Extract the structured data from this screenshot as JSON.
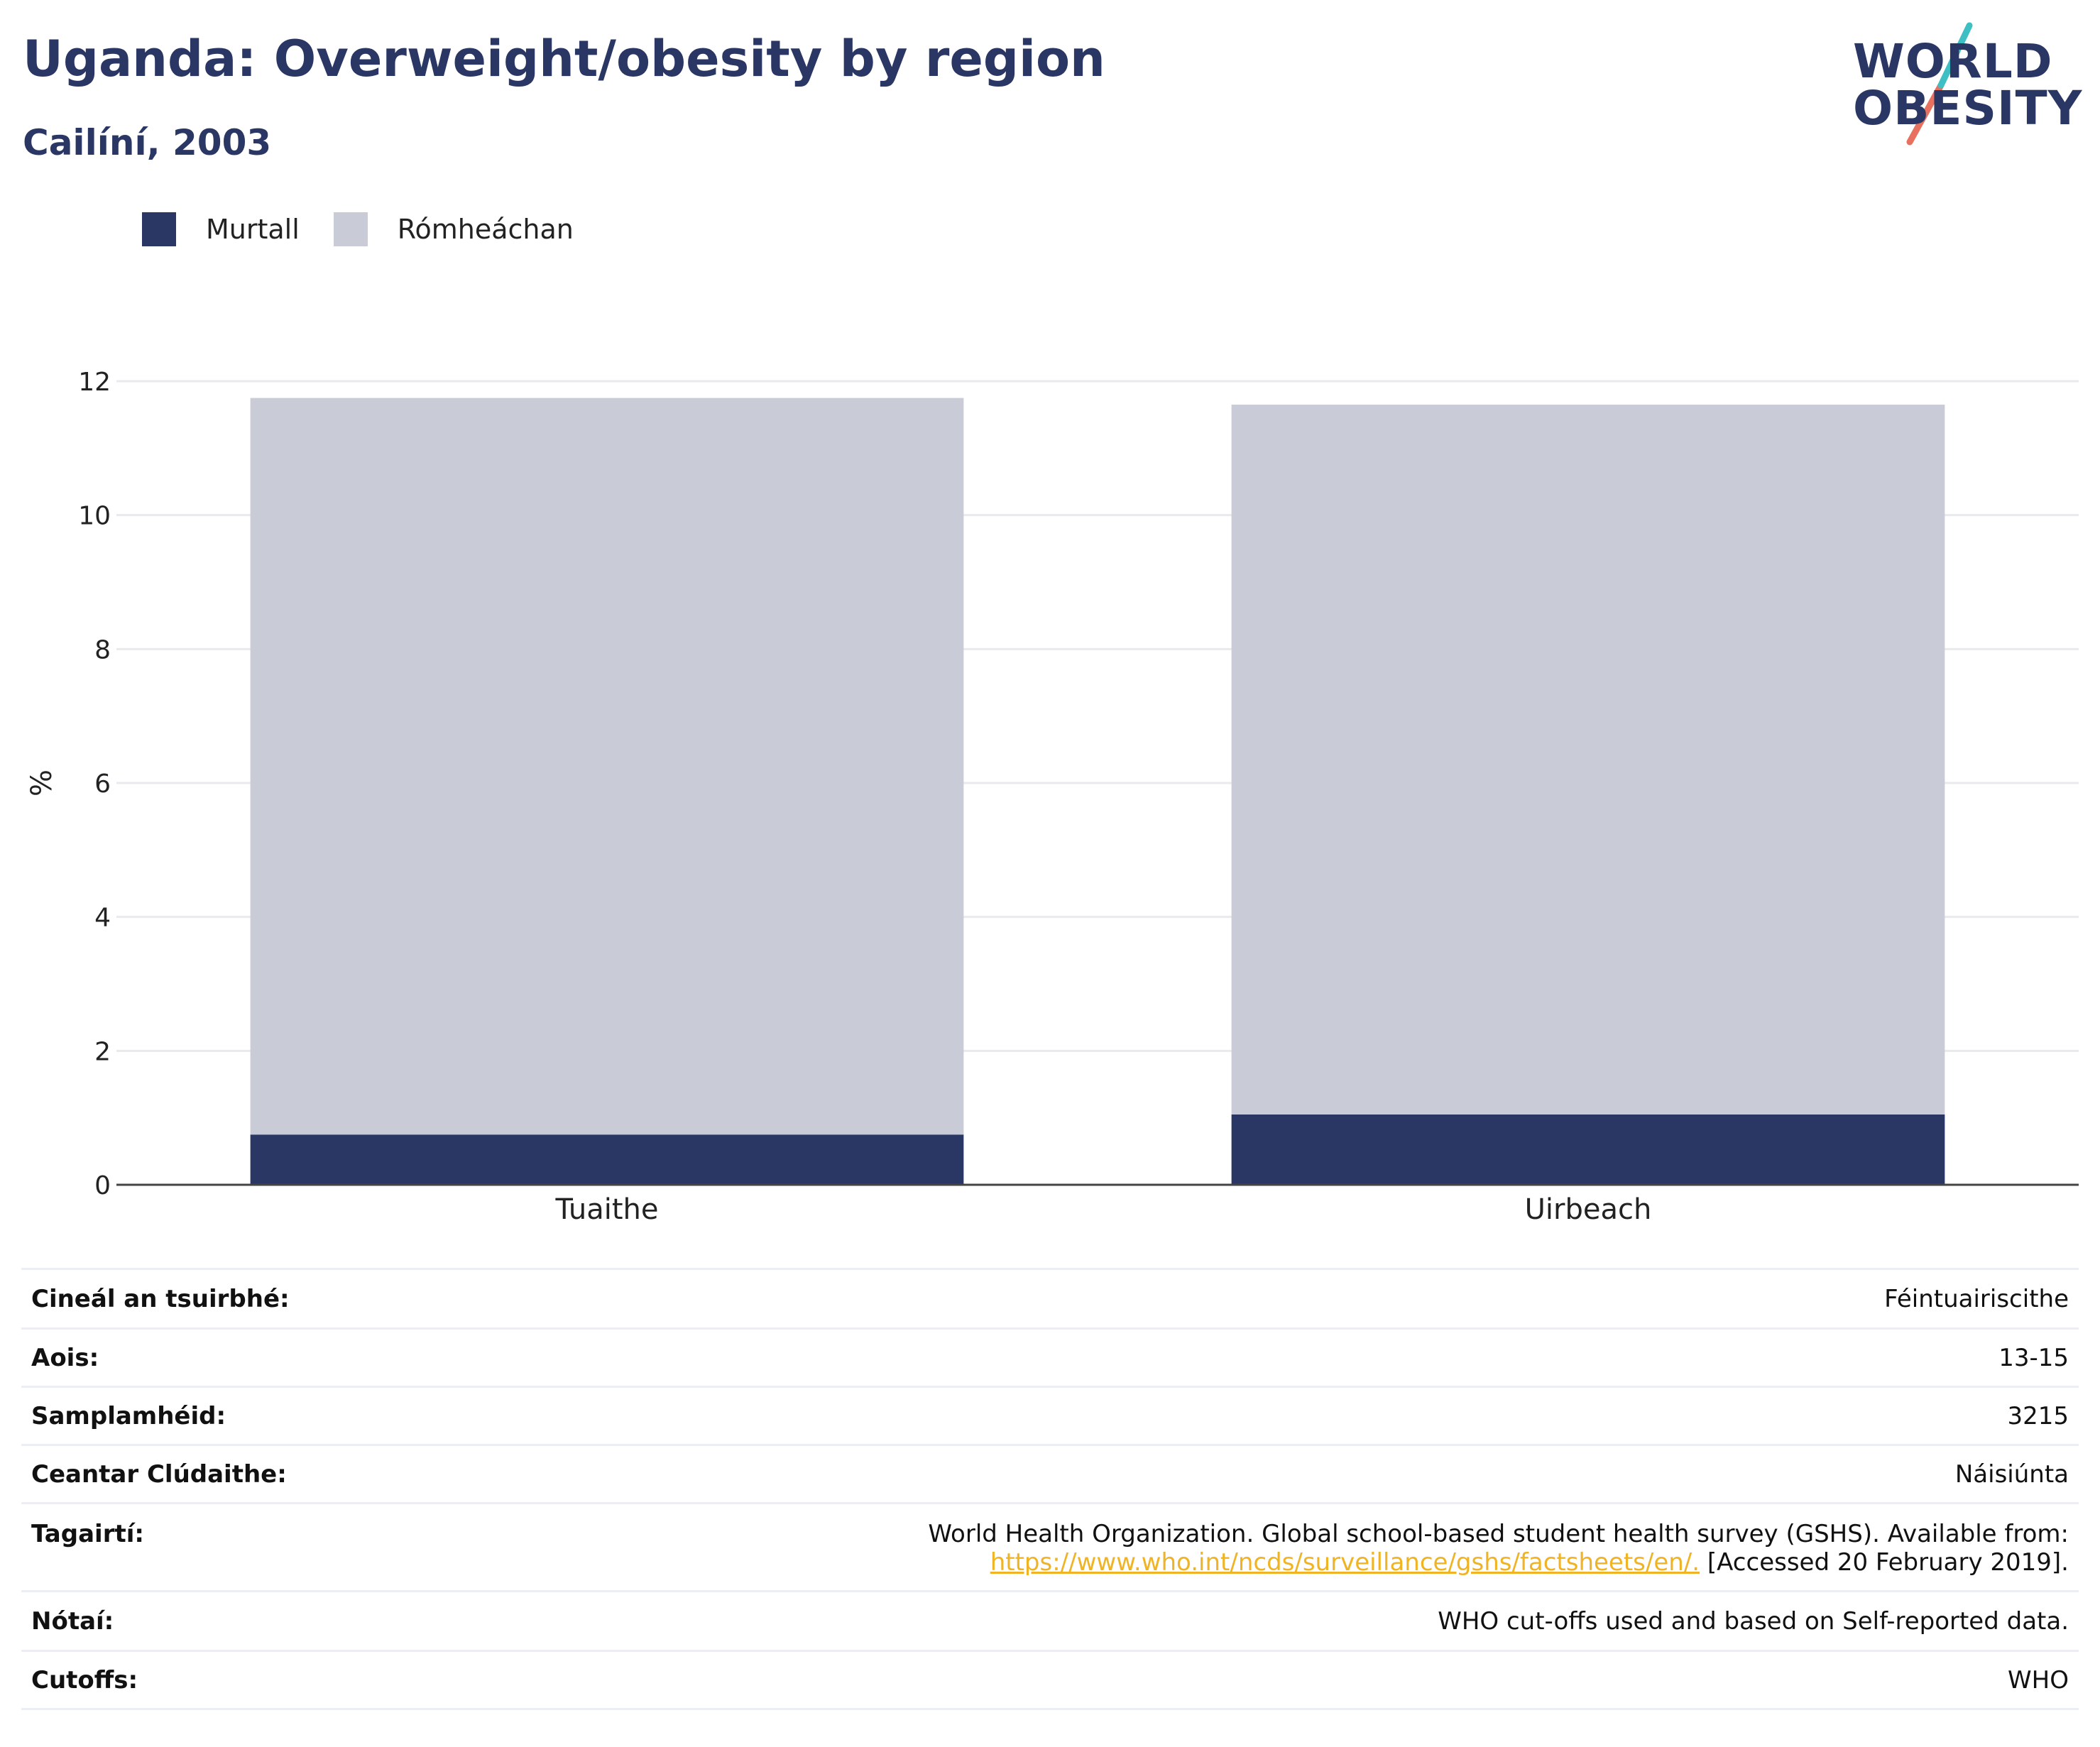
{
  "header": {
    "title": "Uganda: Overweight/obesity by region",
    "subtitle": "Cailíní, 2003"
  },
  "logo": {
    "line1": "WORLD",
    "line2": "OBESITY",
    "colors": {
      "text": "#2a3663",
      "slash_top": "#3dbfc4",
      "slash_bottom": "#e8705f"
    }
  },
  "legend": [
    {
      "label": "Murtall",
      "color": "#2a3663"
    },
    {
      "label": "Rómheáchan",
      "color": "#c9ccd7"
    }
  ],
  "chart_data": {
    "type": "bar",
    "stacked": true,
    "categories": [
      "Tuaithe",
      "Uirbeach"
    ],
    "series": [
      {
        "name": "Murtall",
        "values": [
          0.75,
          1.05
        ],
        "color": "#2a3663"
      },
      {
        "name": "Rómheáchan",
        "values": [
          11.0,
          10.6
        ],
        "color": "#c9ccd7"
      }
    ],
    "ylabel": "%",
    "ylim": [
      0,
      12
    ],
    "yticks": [
      "0",
      "2",
      "4",
      "6",
      "8",
      "10",
      "12"
    ],
    "grid": true,
    "legend_position": "top-left"
  },
  "info": [
    {
      "key": "Cineál an tsuirbhé:",
      "value": "Féintuairiscithe"
    },
    {
      "key": "Aois:",
      "value": "13-15"
    },
    {
      "key": "Samplamhéid:",
      "value": "3215"
    },
    {
      "key": "Ceantar Clúdaithe:",
      "value": "Náisiúnta"
    },
    {
      "key": "Tagairtí:",
      "value_line1": "World Health Organization. Global school-based student health survey (GSHS). Available from:",
      "link": "https://www.who.int/ncds/surveillance/gshs/factsheets/en/.",
      "value_line2_tail": " [Accessed 20 February 2019]."
    },
    {
      "key": "Nótaí:",
      "value": "WHO cut-offs used and based on Self-reported data."
    },
    {
      "key": "Cutoffs:",
      "value": "WHO"
    }
  ]
}
